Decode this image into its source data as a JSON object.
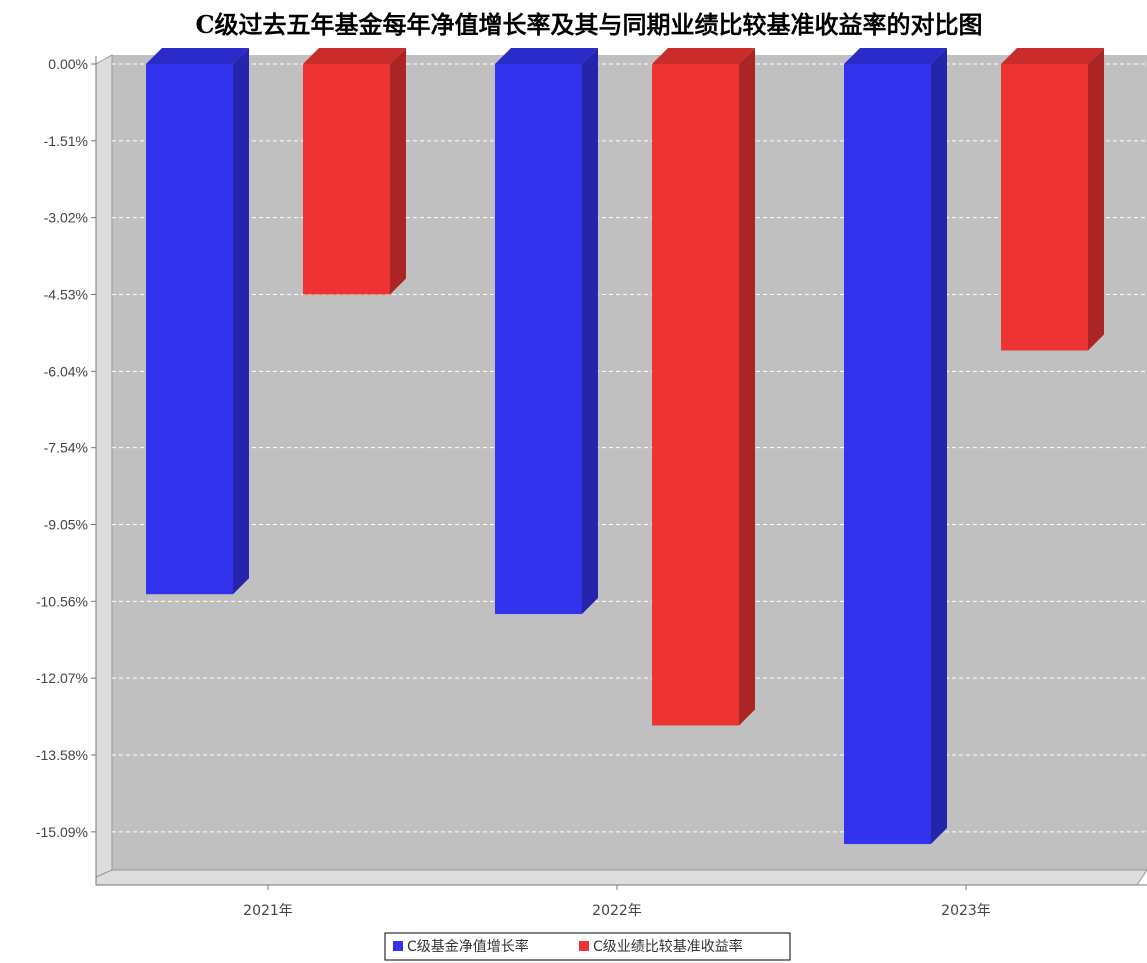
{
  "chart_data": {
    "type": "bar",
    "title": "C级过去五年基金每年净值增长率及其与同期业绩比较基准收益率的对比图",
    "categories": [
      "2021年",
      "2022年",
      "2023年"
    ],
    "series": [
      {
        "name": "C级基金净值增长率",
        "values": [
          -10.42,
          -10.81,
          -15.33
        ],
        "color": "#3333ee"
      },
      {
        "name": "C级业绩比较基准收益率",
        "values": [
          -4.53,
          -13.0,
          -5.63
        ],
        "color": "#ee3333"
      }
    ],
    "ylim": [
      -15.84,
      0
    ],
    "yticks": [
      "0.00%",
      "-1.51%",
      "-3.02%",
      "-4.53%",
      "-6.04%",
      "-7.54%",
      "-9.05%",
      "-10.56%",
      "-12.07%",
      "-13.58%",
      "-15.09%"
    ],
    "ytick_values": [
      0,
      -1.51,
      -3.02,
      -4.53,
      -6.04,
      -7.54,
      -9.05,
      -10.56,
      -12.07,
      -13.58,
      -15.09
    ],
    "grid": true,
    "legend_position": "bottom-center",
    "plot_background": "#c0c0c0",
    "style": "3d-bar"
  }
}
